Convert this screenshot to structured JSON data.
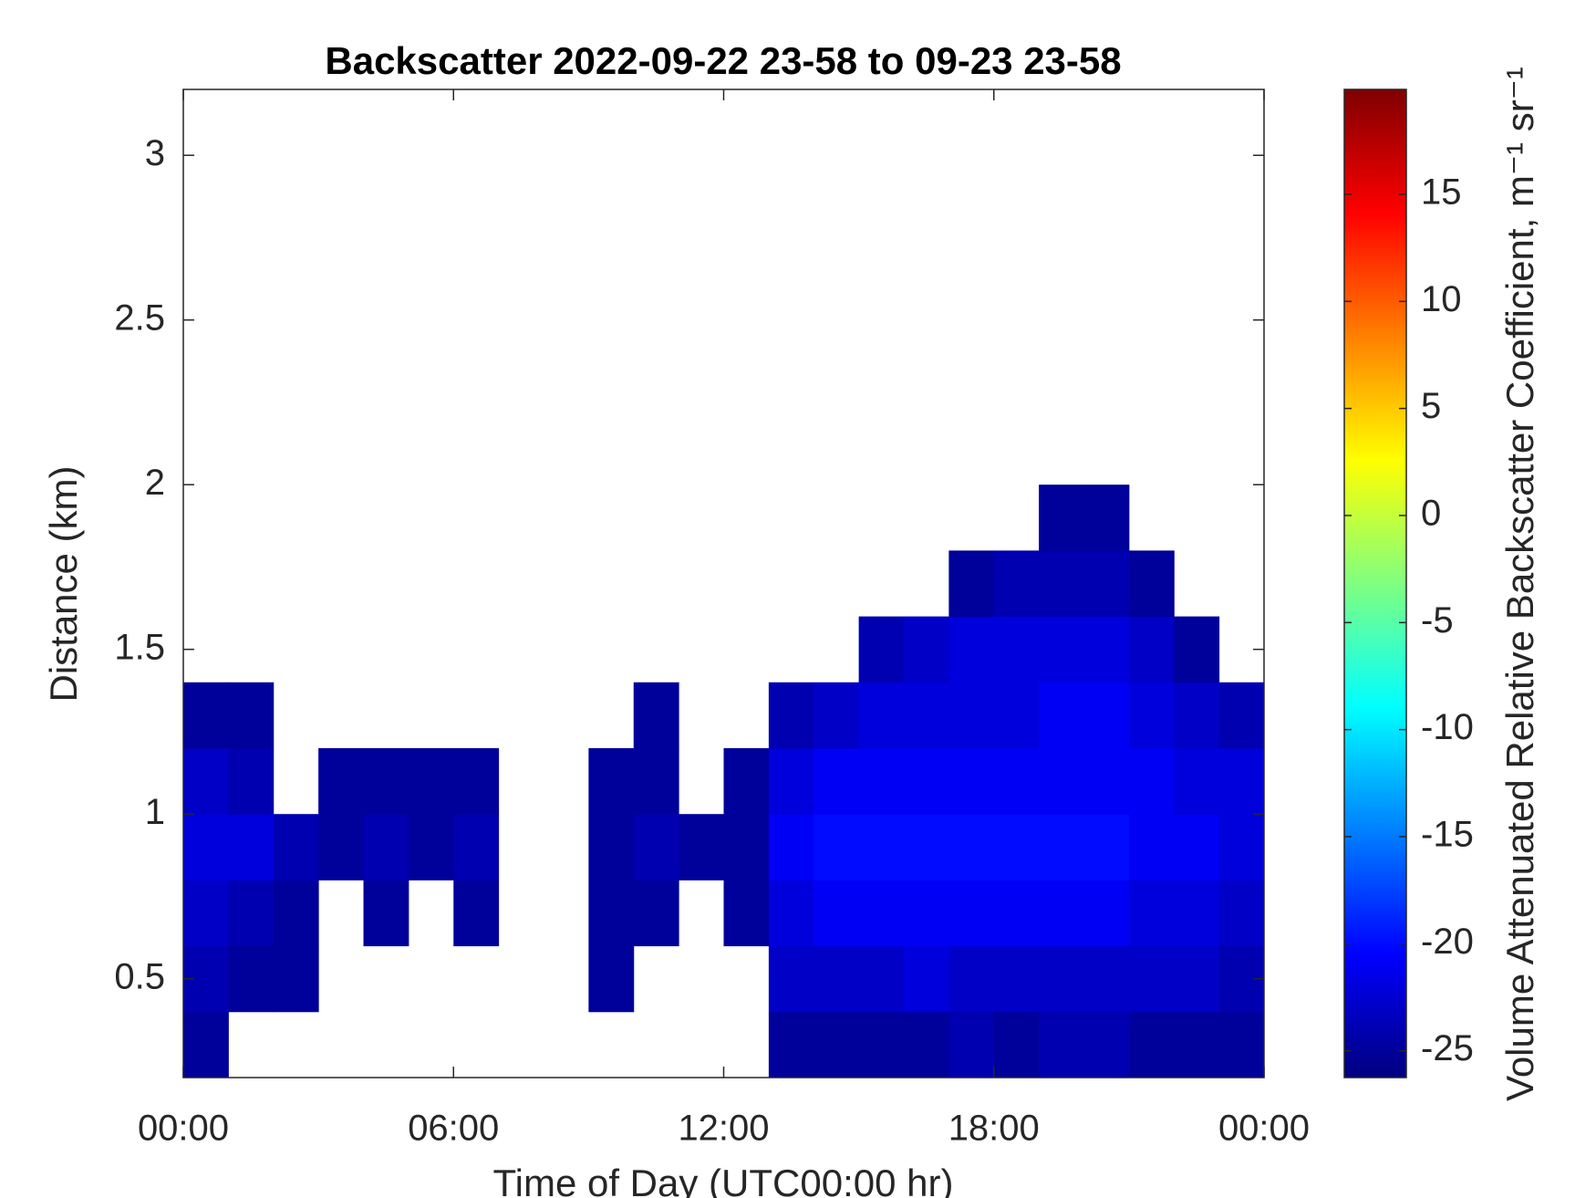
{
  "chart_data": {
    "type": "heatmap",
    "title": "Backscatter 2022-09-22 23-58 to 09-23 23-58",
    "x_label": "Time of Day (UTC00:00 hr)",
    "y_label": "Distance (km)",
    "colorbar_label": "Volume Attenuated Relative Backscatter Coefficient, m⁻¹ sr⁻¹",
    "colormap": "jet",
    "xlim": [
      0,
      24
    ],
    "xticks": [
      {
        "value": 0,
        "label": "00:00"
      },
      {
        "value": 6,
        "label": "06:00"
      },
      {
        "value": 12,
        "label": "12:00"
      },
      {
        "value": 18,
        "label": "18:00"
      },
      {
        "value": 24,
        "label": "00:00"
      }
    ],
    "ylim": [
      0.2,
      3.2
    ],
    "yticks": [
      0.5,
      1,
      1.5,
      2,
      2.5,
      3
    ],
    "clim": [
      -26.25,
      19.9
    ],
    "cticks": [
      -25,
      -20,
      -15,
      -10,
      -5,
      0,
      5,
      10,
      15
    ],
    "x": [
      0.5,
      1.5,
      2.5,
      3.5,
      4.5,
      5.5,
      6.5,
      7.5,
      8.5,
      9.5,
      10.5,
      11.5,
      12.5,
      13.5,
      14.5,
      15.5,
      16.5,
      17.5,
      18.5,
      19.5,
      20.5,
      21.5,
      22.5,
      23.5
    ],
    "y": [
      0.3,
      0.5,
      0.7,
      0.9,
      1.1,
      1.3,
      1.5,
      1.7,
      1.9
    ],
    "z": [
      [
        -25,
        null,
        null,
        null,
        null,
        null,
        null,
        null,
        null,
        null,
        null,
        null,
        null,
        -25,
        -25,
        -25,
        -25,
        -24,
        -25,
        -24,
        -24,
        -25,
        -25,
        -25
      ],
      [
        -24,
        -25,
        -25,
        null,
        null,
        null,
        null,
        null,
        null,
        -25,
        null,
        null,
        null,
        -23,
        -23,
        -23,
        -22,
        -23,
        -23,
        -23,
        -23,
        -23,
        -23,
        -24
      ],
      [
        -23,
        -24,
        -25,
        null,
        -25,
        null,
        -25,
        null,
        null,
        -25,
        -25,
        null,
        -25,
        -22,
        -21,
        -21,
        -21,
        -21,
        -21,
        -21,
        -21,
        -22,
        -22,
        -23
      ],
      [
        -22,
        -22,
        -24,
        -25,
        -24,
        -25,
        -24,
        null,
        null,
        -25,
        -24,
        -25,
        -25,
        -21,
        -20,
        -20,
        -20,
        -20,
        -20,
        -20,
        -20,
        -21,
        -21,
        -22
      ],
      [
        -23,
        -24,
        null,
        -25,
        -25,
        -25,
        -25,
        null,
        null,
        -25,
        -25,
        null,
        -25,
        -22,
        -21,
        -21,
        -21,
        -21,
        -21,
        -21,
        -21,
        -21,
        -22,
        -22
      ],
      [
        -25,
        -25,
        null,
        null,
        null,
        null,
        null,
        null,
        null,
        null,
        -25,
        null,
        null,
        -24,
        -23,
        -22,
        -22,
        -22,
        -22,
        -21,
        -21,
        -22,
        -23,
        -24
      ],
      [
        null,
        null,
        null,
        null,
        null,
        null,
        null,
        null,
        null,
        null,
        null,
        null,
        null,
        null,
        null,
        -24,
        -23,
        -22,
        -22,
        -22,
        -22,
        -23,
        -25,
        null
      ],
      [
        null,
        null,
        null,
        null,
        null,
        null,
        null,
        null,
        null,
        null,
        null,
        null,
        null,
        null,
        null,
        null,
        null,
        -25,
        -24,
        -24,
        -24,
        -25,
        null,
        null
      ],
      [
        null,
        null,
        null,
        null,
        null,
        null,
        null,
        null,
        null,
        null,
        null,
        null,
        null,
        null,
        null,
        null,
        null,
        null,
        null,
        -25,
        -25,
        null,
        null,
        null
      ]
    ]
  }
}
